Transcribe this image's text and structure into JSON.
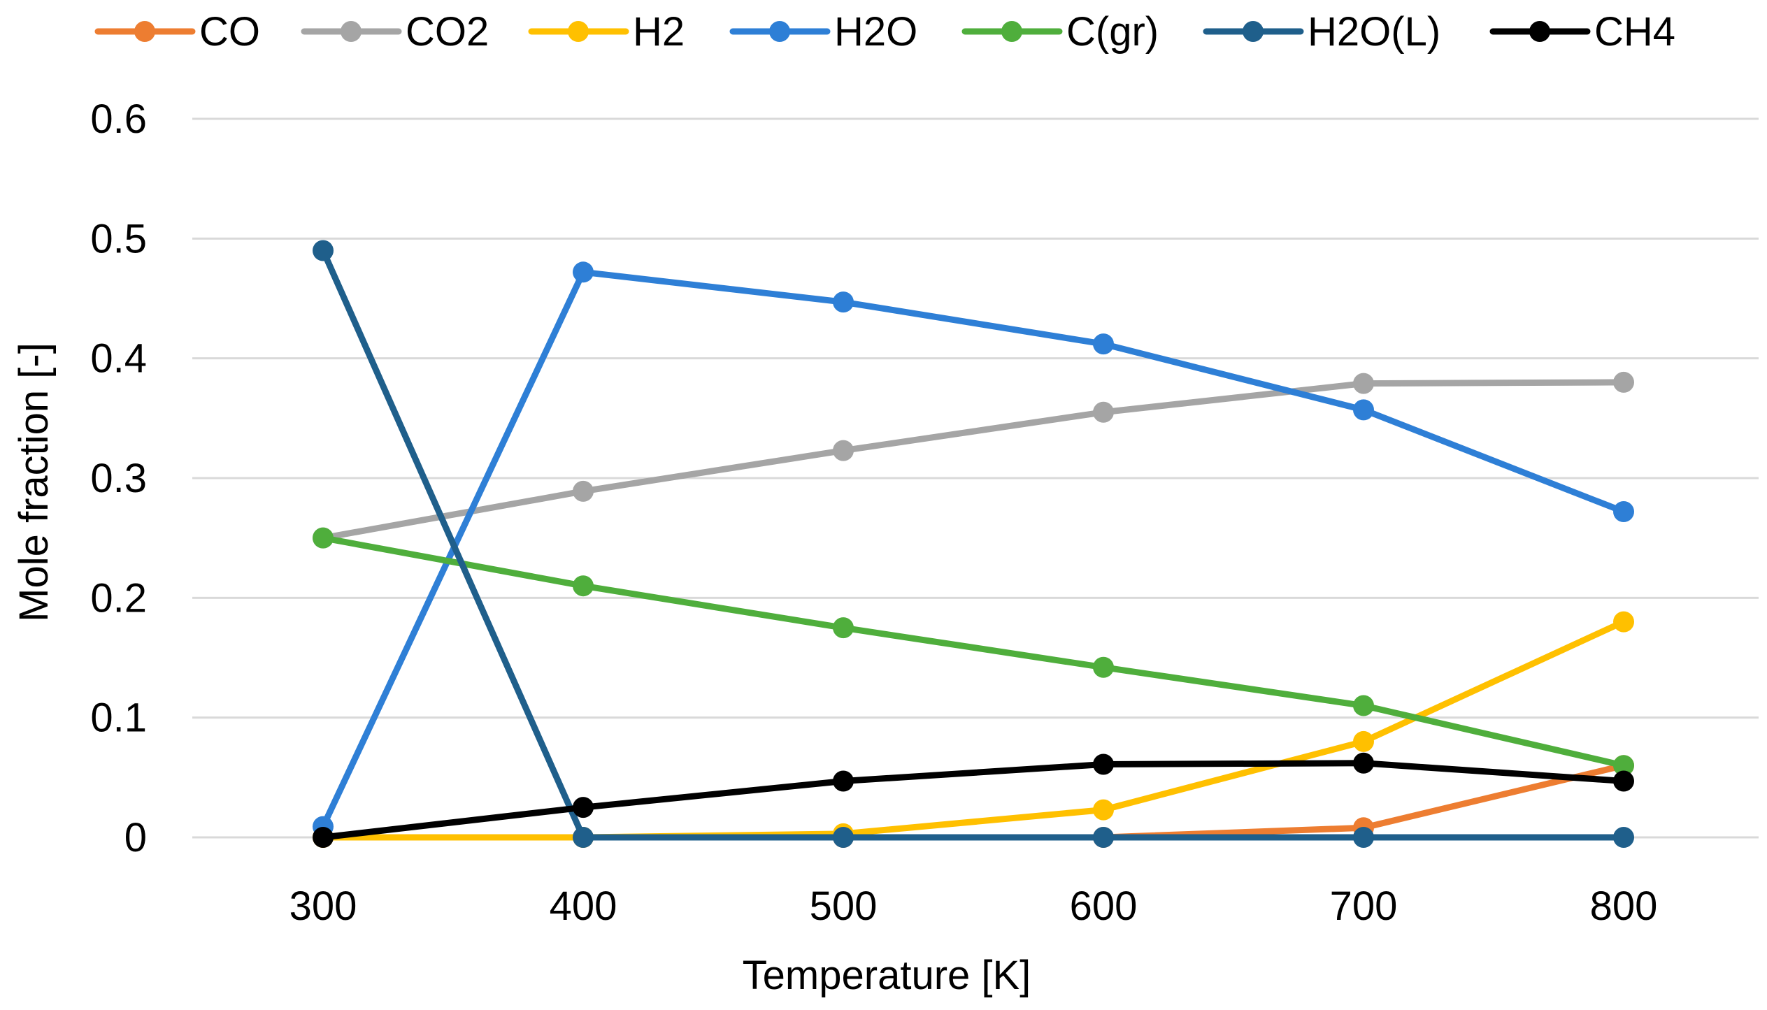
{
  "chart_data": {
    "type": "line",
    "title": "",
    "xlabel": "Temperature [K]",
    "ylabel": "Mole fraction [-]",
    "x": [
      300,
      400,
      500,
      600,
      700,
      800
    ],
    "x_tick_labels": [
      "300",
      "400",
      "500",
      "600",
      "700",
      "800"
    ],
    "ylim": [
      0,
      0.6
    ],
    "y_ticks": [
      0,
      0.1,
      0.2,
      0.3,
      0.4,
      0.5,
      0.6
    ],
    "y_tick_labels": [
      "0",
      "0.1",
      "0.2",
      "0.3",
      "0.4",
      "0.5",
      "0.6"
    ],
    "grid": true,
    "legend_position": "top",
    "series": [
      {
        "name": "CO",
        "color": "#ED7D31",
        "values": [
          0,
          0,
          0,
          0,
          0.008,
          0.06
        ]
      },
      {
        "name": "CO2",
        "color": "#A5A5A5",
        "values": [
          0.25,
          0.289,
          0.323,
          0.355,
          0.379,
          0.38
        ]
      },
      {
        "name": "H2",
        "color": "#FFC000",
        "values": [
          0,
          0,
          0.003,
          0.023,
          0.08,
          0.18
        ]
      },
      {
        "name": "H2O",
        "color": "#2E7FD6",
        "values": [
          0.009,
          0.472,
          0.447,
          0.412,
          0.357,
          0.272
        ]
      },
      {
        "name": "C(gr)",
        "color": "#4FAE3C",
        "values": [
          0.25,
          0.21,
          0.175,
          0.142,
          0.11,
          0.06
        ]
      },
      {
        "name": "H2O(L)",
        "color": "#1F5F8B",
        "values": [
          0.49,
          0,
          0,
          0,
          0,
          0
        ]
      },
      {
        "name": "CH4",
        "color": "#000000",
        "values": [
          0,
          0.025,
          0.047,
          0.061,
          0.062,
          0.047
        ]
      }
    ]
  }
}
